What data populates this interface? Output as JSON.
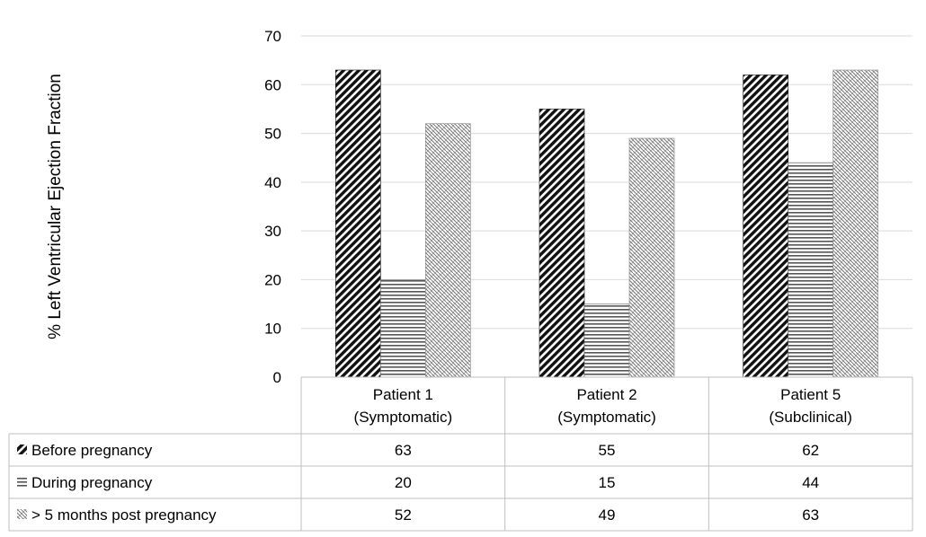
{
  "chart_data": {
    "type": "bar",
    "ylabel": "% Left Ventricular Ejection Fraction",
    "ylim": [
      0,
      70
    ],
    "yticks": [
      0,
      10,
      20,
      30,
      40,
      50,
      60,
      70
    ],
    "grid": true,
    "legend": "data-table",
    "categories": [
      {
        "line1": "Patient 1",
        "line2": "(Symptomatic)"
      },
      {
        "line1": "Patient 2",
        "line2": "(Symptomatic)"
      },
      {
        "line1": "Patient 5",
        "line2": "(Subclinical)"
      }
    ],
    "series": [
      {
        "name": "Before pregnancy",
        "pattern": "diagonal-dense",
        "values": [
          63,
          55,
          62
        ]
      },
      {
        "name": "During pregnancy",
        "pattern": "horizontal-lines",
        "values": [
          20,
          15,
          44
        ]
      },
      {
        "name": "> 5 months post pregnancy",
        "pattern": "weave",
        "values": [
          52,
          49,
          63
        ]
      }
    ]
  }
}
